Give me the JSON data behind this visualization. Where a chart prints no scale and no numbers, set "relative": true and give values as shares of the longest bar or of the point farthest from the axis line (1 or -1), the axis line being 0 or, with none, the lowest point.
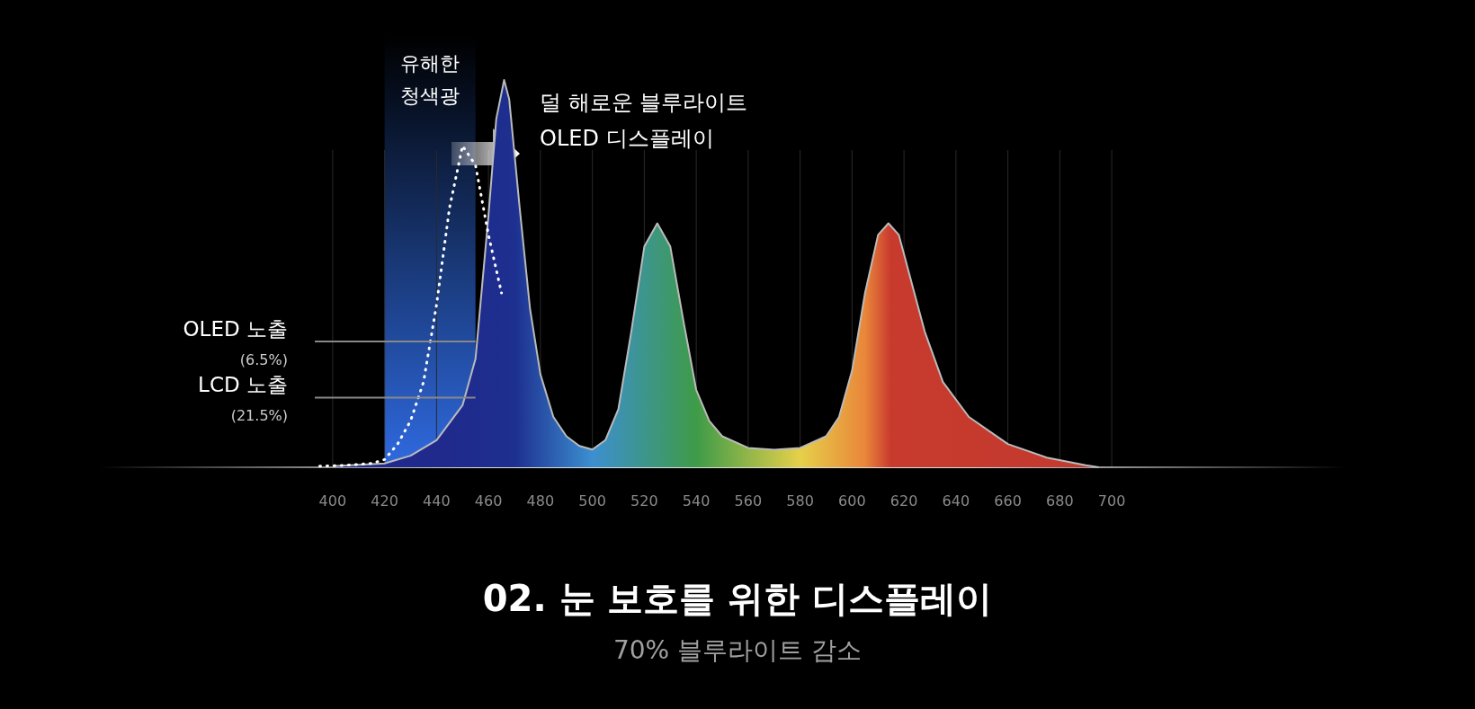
{
  "chart_data": {
    "type": "area",
    "title": "02. 눈 보호를 위한 디스플레이",
    "subtitle": "70% 블루라이트 감소",
    "relative": true,
    "xlim": [
      310,
      790
    ],
    "xticks": [
      400,
      420,
      440,
      460,
      480,
      500,
      520,
      540,
      560,
      580,
      600,
      620,
      640,
      660,
      680,
      700
    ],
    "grid": "x",
    "series": [
      {
        "color": "#1f2a8c",
        "x": [
          400,
          420,
          430,
          440,
          450,
          455,
          460,
          463,
          466,
          468,
          472,
          476,
          480,
          485,
          490,
          495,
          500,
          505,
          510,
          515,
          520,
          525,
          530,
          535,
          540,
          545,
          550,
          560,
          570,
          580,
          590,
          595,
          600,
          605,
          610,
          614,
          618,
          622,
          628,
          635,
          645,
          660,
          675,
          690,
          695
        ],
        "values": [
          0.003,
          0.01,
          0.03,
          0.07,
          0.16,
          0.28,
          0.65,
          0.9,
          1,
          0.95,
          0.67,
          0.41,
          0.24,
          0.13,
          0.08,
          0.055,
          0.046,
          0.07,
          0.15,
          0.35,
          0.57,
          0.63,
          0.57,
          0.38,
          0.2,
          0.12,
          0.08,
          0.05,
          0.045,
          0.05,
          0.08,
          0.13,
          0.25,
          0.45,
          0.6,
          0.63,
          0.6,
          0.5,
          0.35,
          0.22,
          0.13,
          0.06,
          0.025,
          0.005,
          0
        ]
      },
      {
        "type": "line",
        "color": "#ffffff",
        "line_style": "dotted",
        "x": [
          395,
          405,
          415,
          420,
          425,
          430,
          435,
          440,
          445,
          450,
          455,
          460,
          465
        ],
        "values": [
          0.003,
          0.005,
          0.01,
          0.02,
          0.06,
          0.12,
          0.22,
          0.42,
          0.67,
          0.83,
          0.78,
          0.6,
          0.45
        ]
      }
    ],
    "ref_lines": [
      {
        "axis": "y",
        "value": 0.325,
        "label": "OLED 노출 (6.5%)",
        "color": "#888888"
      },
      {
        "axis": "y",
        "value": 0.18,
        "label": "LCD 노출 (21.5%)",
        "color": "#888888"
      }
    ],
    "bands": [
      {
        "axis": "x",
        "from": 420,
        "to": 455,
        "label": "유해한 청색광",
        "color": "#2f6ae0"
      }
    ],
    "annotations": [
      "덜 해로운 블루라이트 OLED 디스플레이"
    ]
  }
}
